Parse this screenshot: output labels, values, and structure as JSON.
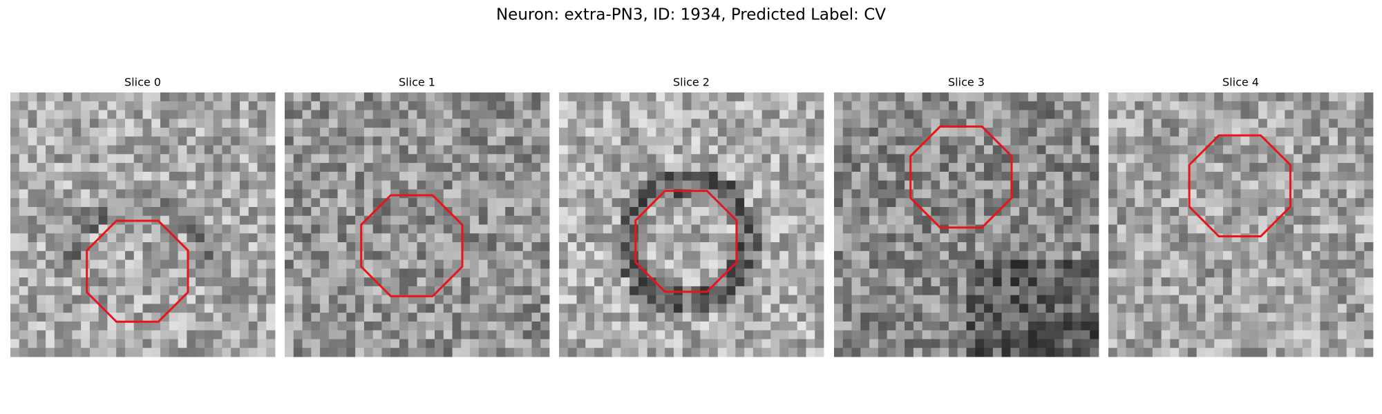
{
  "title": "Neuron: extra-PN3, ID: 1934, Predicted Label: CV",
  "panels": [
    {
      "title": "Slice 0"
    },
    {
      "title": "Slice 1"
    },
    {
      "title": "Slice 2"
    },
    {
      "title": "Slice 3"
    },
    {
      "title": "Slice 4"
    }
  ]
}
